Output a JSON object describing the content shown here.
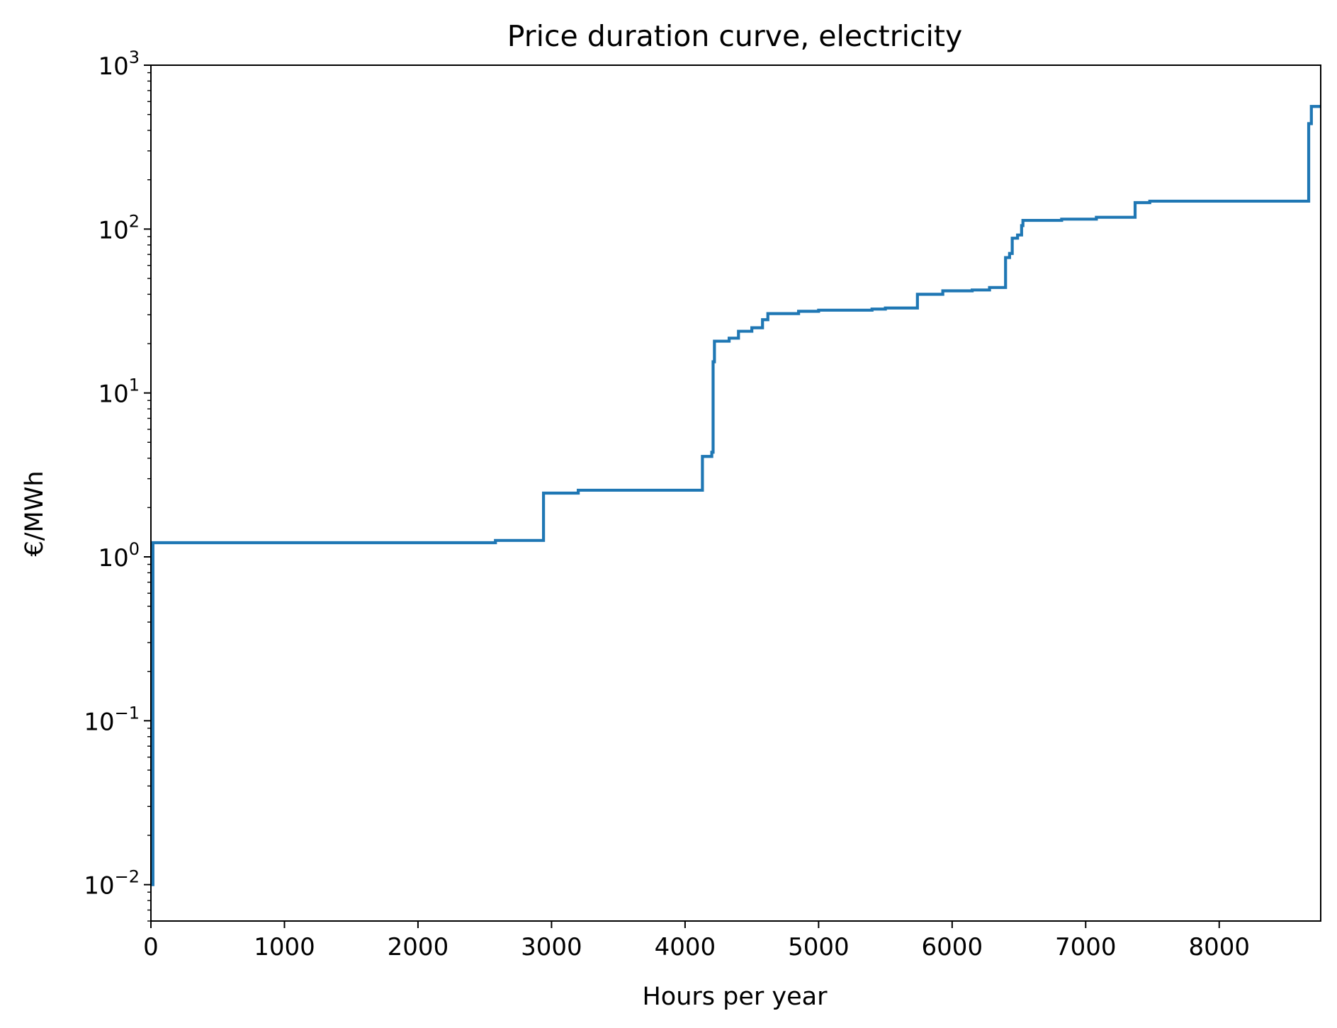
{
  "chart_data": {
    "type": "line",
    "title": "Price duration curve, electricity",
    "xlabel": "Hours per year",
    "ylabel": "€/MWh",
    "xscale": "linear",
    "yscale": "log",
    "xlim": [
      0,
      8760
    ],
    "ylim": [
      0.006,
      1000
    ],
    "xticks": [
      0,
      1000,
      2000,
      3000,
      4000,
      5000,
      6000,
      7000,
      8000
    ],
    "xtick_labels": [
      "0",
      "1000",
      "2000",
      "3000",
      "4000",
      "5000",
      "6000",
      "7000",
      "8000"
    ],
    "yticks": [
      0.01,
      0.1,
      1,
      10,
      100,
      1000
    ],
    "ytick_labels": [
      {
        "base": "10",
        "exp": "−2"
      },
      {
        "base": "10",
        "exp": "−1"
      },
      {
        "base": "10",
        "exp": "0"
      },
      {
        "base": "10",
        "exp": "1"
      },
      {
        "base": "10",
        "exp": "2"
      },
      {
        "base": "10",
        "exp": "3"
      }
    ],
    "grid": false,
    "legend": "none",
    "colors": {
      "line": "#1f77b4",
      "axes": "#000000"
    },
    "series": [
      {
        "x": [
          0,
          15,
          15,
          2580,
          2580,
          2940,
          2940,
          3200,
          3200,
          4130,
          4130,
          4200,
          4200,
          4210,
          4210,
          4220,
          4220,
          4330,
          4330,
          4400,
          4400,
          4500,
          4500,
          4580,
          4580,
          4620,
          4620,
          4850,
          4850,
          5000,
          5000,
          5400,
          5400,
          5500,
          5500,
          5740,
          5740,
          5930,
          5930,
          6150,
          6150,
          6280,
          6280,
          6400,
          6400,
          6430,
          6430,
          6450,
          6450,
          6490,
          6490,
          6520,
          6520,
          6530,
          6530,
          6820,
          6820,
          7080,
          7080,
          7370,
          7370,
          7480,
          7480,
          8670,
          8670,
          8690,
          8690,
          8760
        ],
        "y": [
          0.01,
          0.01,
          1.22,
          1.22,
          1.26,
          1.26,
          2.45,
          2.45,
          2.55,
          2.55,
          4.1,
          4.1,
          4.35,
          4.35,
          15.5,
          15.5,
          20.7,
          20.7,
          21.6,
          21.6,
          23.8,
          23.8,
          25,
          25,
          28,
          28,
          30.5,
          30.5,
          31.5,
          31.5,
          32,
          32,
          32.5,
          32.5,
          33,
          33,
          40,
          40,
          42,
          42,
          42.5,
          42.5,
          44,
          44,
          67,
          67,
          71,
          71,
          88,
          88,
          92,
          92,
          105,
          105,
          113,
          113,
          115,
          115,
          118,
          118,
          145,
          145,
          148,
          148,
          440,
          440,
          560,
          560
        ]
      }
    ]
  }
}
